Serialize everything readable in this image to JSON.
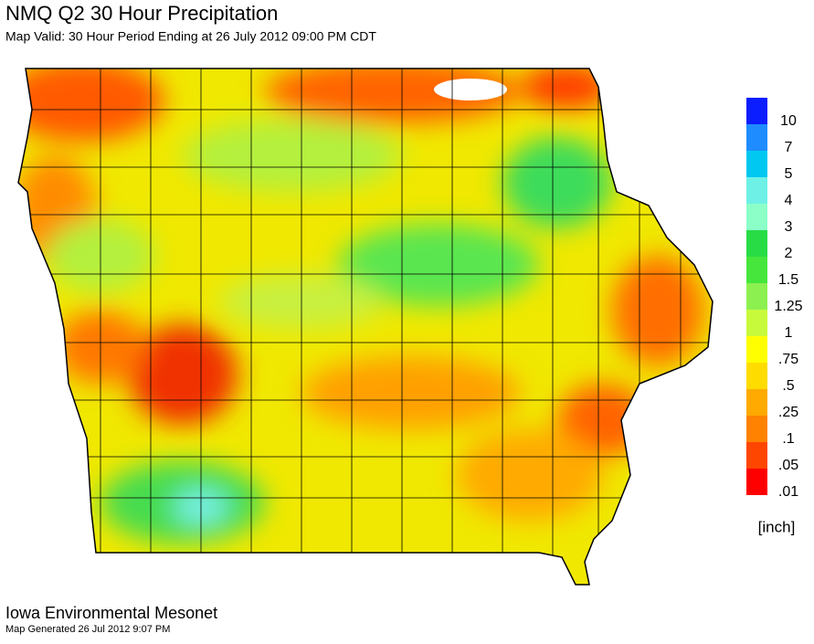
{
  "header": {
    "title": "NMQ Q2 30 Hour Precipitation",
    "subtitle": "Map Valid:  30 Hour Period Ending at 26 July 2012 09:00 PM CDT"
  },
  "legend": {
    "unit": "[inch]",
    "items": [
      {
        "label": "10",
        "color": "#0a1eff"
      },
      {
        "label": "7",
        "color": "#1e8cff"
      },
      {
        "label": "5",
        "color": "#00c8f0"
      },
      {
        "label": "4",
        "color": "#6ef0e6"
      },
      {
        "label": "3",
        "color": "#8cffc8"
      },
      {
        "label": "2",
        "color": "#28dc46"
      },
      {
        "label": "1.5",
        "color": "#46e63c"
      },
      {
        "label": "1.25",
        "color": "#8cf050"
      },
      {
        "label": "1",
        "color": "#c8fa3c"
      },
      {
        "label": ".75",
        "color": "#ffff00"
      },
      {
        "label": ".5",
        "color": "#ffdc00"
      },
      {
        "label": ".25",
        "color": "#ffaa00"
      },
      {
        "label": ".1",
        "color": "#ff8200"
      },
      {
        "label": ".05",
        "color": "#ff4600"
      },
      {
        "label": ".01",
        "color": "#ff0000"
      }
    ]
  },
  "footer": {
    "source": "Iowa Environmental Mesonet",
    "generated": "Map Generated 26 Jul 2012 9:07 PM"
  }
}
